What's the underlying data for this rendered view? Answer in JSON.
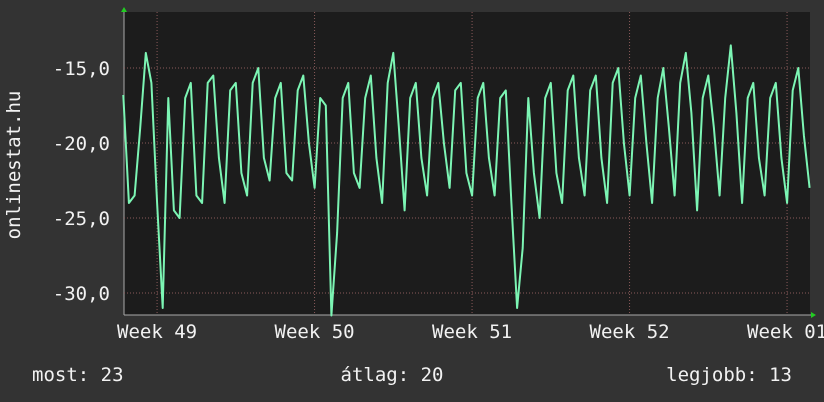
{
  "chart_data": {
    "type": "line",
    "y_label": "onlinestat.hu",
    "xlim": [
      -1.47,
      29.02
    ],
    "ylim": [
      -31.47,
      -11.27
    ],
    "xticks": [
      {
        "value": 0,
        "label": "Week 49"
      },
      {
        "value": 7,
        "label": "Week 50"
      },
      {
        "value": 14,
        "label": "Week 51"
      },
      {
        "value": 21,
        "label": "Week 52"
      },
      {
        "value": 28,
        "label": "Week 01"
      }
    ],
    "yticks": [
      {
        "value": -15,
        "label": "-15,0"
      },
      {
        "value": -20,
        "label": "-20,0"
      },
      {
        "value": -25,
        "label": "-25,0"
      },
      {
        "value": -30,
        "label": "-30,0"
      }
    ],
    "grid": true,
    "x": [
      -1.5,
      -1.25,
      -1,
      -0.75,
      -0.5,
      -0.25,
      0,
      0.25,
      0.5,
      0.75,
      1,
      1.25,
      1.5,
      1.75,
      2,
      2.25,
      2.5,
      2.75,
      3,
      3.25,
      3.5,
      3.75,
      4,
      4.25,
      4.5,
      4.75,
      5,
      5.25,
      5.5,
      5.75,
      6,
      6.25,
      6.5,
      6.75,
      7,
      7.25,
      7.5,
      7.75,
      8,
      8.25,
      8.5,
      8.75,
      9,
      9.25,
      9.5,
      9.75,
      10,
      10.25,
      10.5,
      10.75,
      11,
      11.25,
      11.5,
      11.75,
      12,
      12.25,
      12.5,
      12.75,
      13,
      13.25,
      13.5,
      13.75,
      14,
      14.25,
      14.5,
      14.75,
      15,
      15.25,
      15.5,
      15.75,
      16,
      16.25,
      16.5,
      16.75,
      17,
      17.25,
      17.5,
      17.75,
      18,
      18.25,
      18.5,
      18.75,
      19,
      19.25,
      19.5,
      19.75,
      20,
      20.25,
      20.5,
      20.75,
      21,
      21.25,
      21.5,
      21.75,
      22,
      22.25,
      22.5,
      22.75,
      23,
      23.25,
      23.5,
      23.75,
      24,
      24.25,
      24.5,
      24.75,
      25,
      25.25,
      25.5,
      25.75,
      26,
      26.25,
      26.5,
      26.75,
      27,
      27.25,
      27.5,
      27.75,
      28,
      28.25,
      28.5,
      28.75,
      29
    ],
    "series": [
      {
        "name": null,
        "color": "#7cf5b4",
        "values": [
          -16.8,
          -24,
          -23.5,
          -19,
          -14,
          -16,
          -24,
          -31,
          -17,
          -24.5,
          -25,
          -17,
          -16,
          -23.5,
          -24,
          -16,
          -15.5,
          -21,
          -24,
          -16.5,
          -16,
          -22,
          -23.5,
          -16,
          -15,
          -21,
          -22.5,
          -17,
          -16,
          -22,
          -22.5,
          -16.5,
          -15.5,
          -20,
          -23,
          -17,
          -17.5,
          -31.5,
          -26,
          -17,
          -16,
          -22,
          -23,
          -17,
          -15.5,
          -21,
          -24,
          -16,
          -14,
          -19,
          -24.5,
          -17,
          -16,
          -21,
          -23.5,
          -17,
          -16,
          -20,
          -23,
          -16.5,
          -16,
          -22,
          -23.5,
          -17,
          -16,
          -21,
          -23.5,
          -17,
          -16.5,
          -24,
          -31,
          -27,
          -17,
          -22,
          -25,
          -17,
          -16,
          -22,
          -24,
          -16.5,
          -15.5,
          -21,
          -23.5,
          -16.5,
          -15.5,
          -21,
          -24,
          -16,
          -15,
          -20,
          -23.5,
          -17,
          -15.5,
          -20,
          -24,
          -17,
          -15,
          -19,
          -23.5,
          -16,
          -14,
          -18,
          -24.5,
          -17,
          -15.5,
          -19,
          -23.5,
          -17,
          -13.5,
          -18,
          -24,
          -17,
          -16,
          -21,
          -23.5,
          -17,
          -16,
          -21,
          -24,
          -16.5,
          -15,
          -19.5,
          -23
        ]
      }
    ],
    "stats": [
      "most: 23",
      "átlag: 20",
      "legjobb: 13"
    ]
  }
}
